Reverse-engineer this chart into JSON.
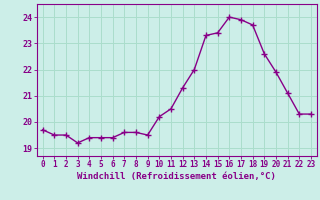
{
  "x": [
    0,
    1,
    2,
    3,
    4,
    5,
    6,
    7,
    8,
    9,
    10,
    11,
    12,
    13,
    14,
    15,
    16,
    17,
    18,
    19,
    20,
    21,
    22,
    23
  ],
  "y": [
    19.7,
    19.5,
    19.5,
    19.2,
    19.4,
    19.4,
    19.4,
    19.6,
    19.6,
    19.5,
    20.2,
    20.5,
    21.3,
    22.0,
    23.3,
    23.4,
    24.0,
    23.9,
    23.7,
    22.6,
    21.9,
    21.1,
    20.3,
    20.3
  ],
  "line_color": "#880088",
  "marker": "+",
  "markersize": 4,
  "linewidth": 1.0,
  "bg_color": "#cceee8",
  "grid_color": "#aaddcc",
  "xlabel": "Windchill (Refroidissement éolien,°C)",
  "xlabel_color": "#880088",
  "xlabel_fontsize": 6.5,
  "tick_color": "#880088",
  "tick_fontsize": 5.5,
  "ytick_vals": [
    19,
    20,
    21,
    22,
    23,
    24
  ],
  "ytick_labels": [
    "19",
    "20",
    "21",
    "22",
    "23",
    "24"
  ],
  "ylim": [
    18.7,
    24.5
  ],
  "xlim": [
    -0.5,
    23.5
  ],
  "xtick_labels": [
    "0",
    "1",
    "2",
    "3",
    "4",
    "5",
    "6",
    "7",
    "8",
    "9",
    "10",
    "11",
    "12",
    "13",
    "14",
    "15",
    "16",
    "17",
    "18",
    "19",
    "20",
    "21",
    "22",
    "23"
  ]
}
